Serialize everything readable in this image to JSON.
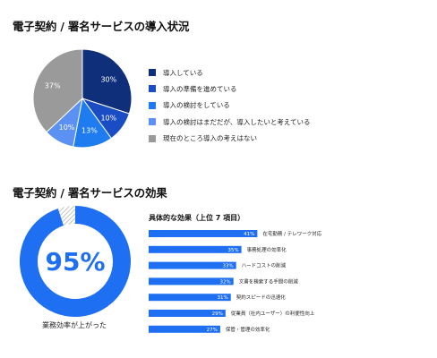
{
  "colors": {
    "navy": "#0f2f7a",
    "blue1": "#1a4dc4",
    "blue2": "#1f7bf0",
    "blue3": "#5b91f2",
    "gray": "#9a9a9a",
    "bar": "#1f6ff2"
  },
  "chart_data": [
    {
      "type": "pie",
      "title": "電子契約 / 署名サービスの導入状況",
      "slices": [
        {
          "label": "導入している",
          "value": 30,
          "text": "30%",
          "color": "#0f2f7a"
        },
        {
          "label": "導入の準備を進めている",
          "value": 10,
          "text": "10%",
          "color": "#1a4dc4"
        },
        {
          "label": "導入の検討をしている",
          "value": 13,
          "text": "13%",
          "color": "#1f7bf0"
        },
        {
          "label": "導入の検討はまだだが、導入したいと考えている",
          "value": 10,
          "text": "10%",
          "color": "#5b91f2"
        },
        {
          "label": "現在のところ導入の考えはない",
          "value": 37,
          "text": "37%",
          "color": "#9a9a9a"
        }
      ],
      "legend": "right"
    },
    {
      "type": "pie",
      "title": "電子契約 / 署名サービスの効果",
      "value": 95,
      "value_text": "95%",
      "caption": "業務効率が上がった",
      "colors": {
        "value": "#1f6ff2",
        "rest": "hatched-gray"
      }
    },
    {
      "type": "bar",
      "orientation": "horizontal",
      "title": "具体的な効果（上位 7 項目）",
      "categories": [
        "在宅勤務 / テレワーク対応",
        "事務処理の効率化",
        "ハードコストの削減",
        "文書を検索する手間の削減",
        "契約スピードの迅速化",
        "従業員（社内ユーザー）の利便性向上",
        "保管・管理の効率化"
      ],
      "values": [
        41,
        35,
        33,
        32,
        31,
        29,
        27
      ],
      "value_labels": [
        "41%",
        "35%",
        "33%",
        "32%",
        "31%",
        "29%",
        "27%"
      ],
      "xlim": [
        0,
        100
      ],
      "grid": false
    }
  ]
}
